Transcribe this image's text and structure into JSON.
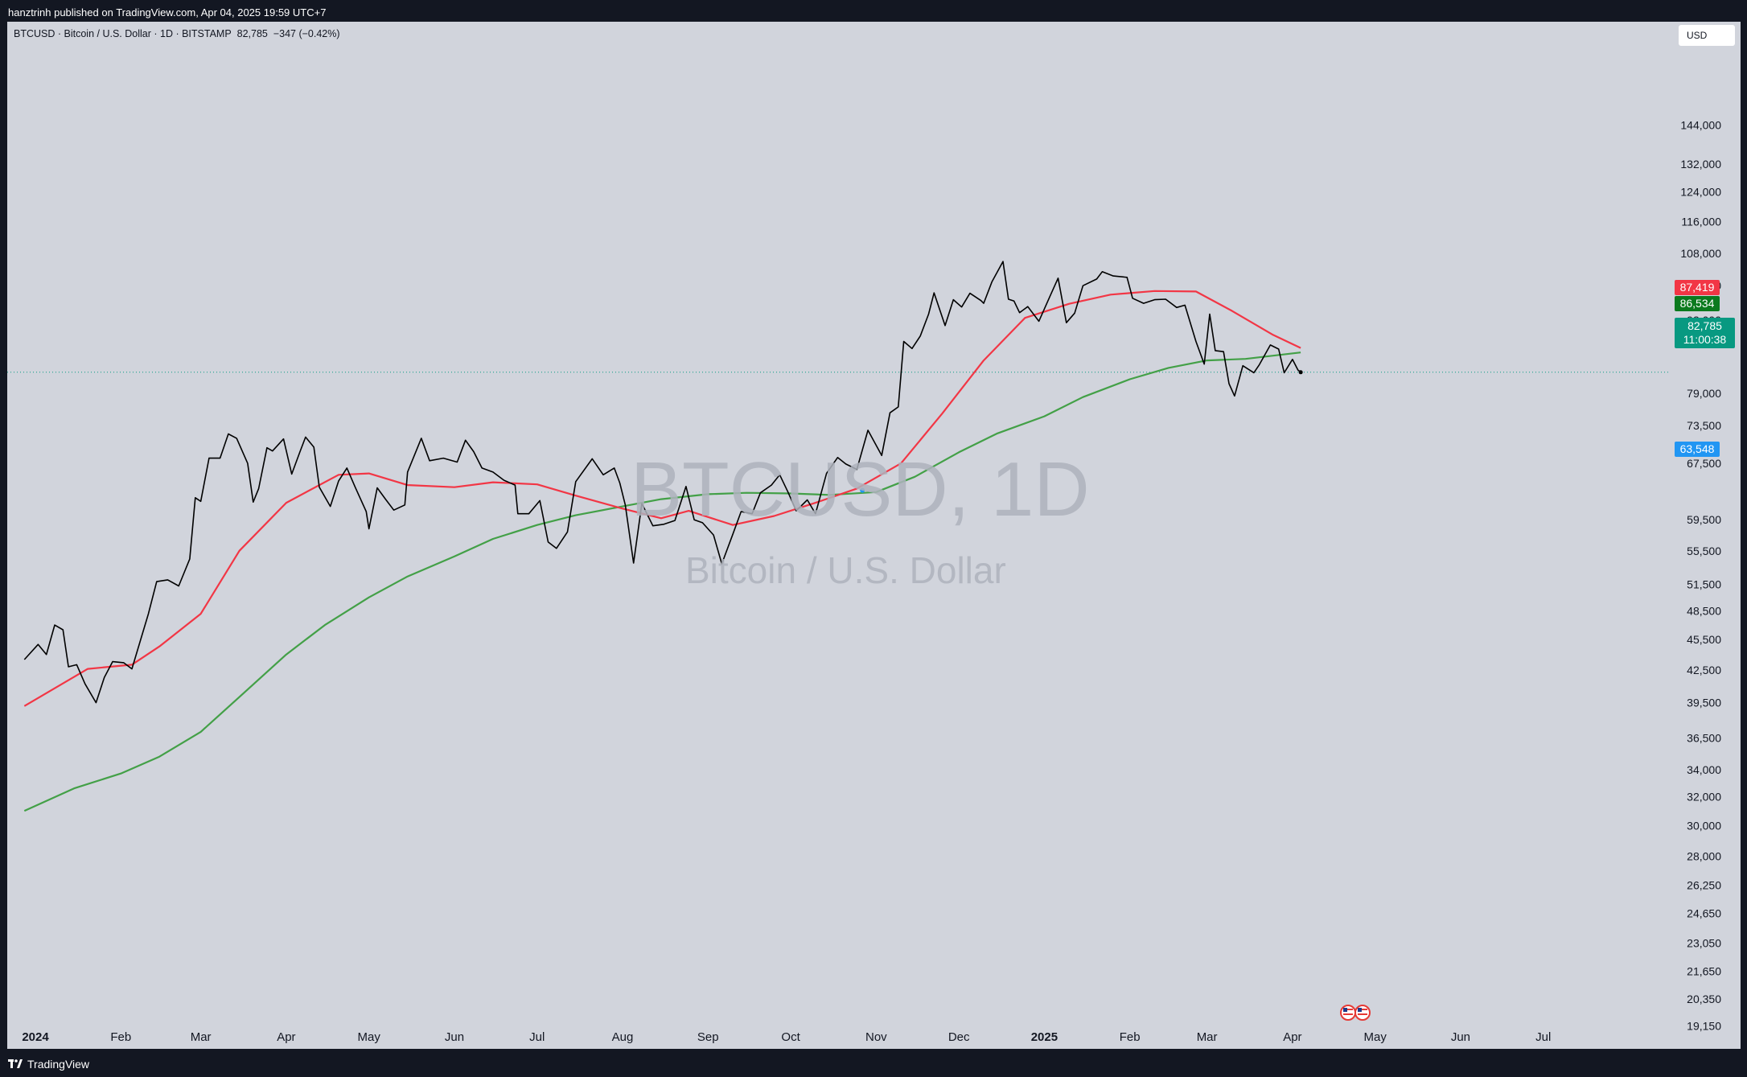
{
  "header": {
    "publish_text": "hanztrinh published on TradingView.com, Apr 04, 2025 19:59 UTC+7"
  },
  "symbol_line": {
    "symbol": "BTCUSD",
    "description": "Bitcoin / U.S. Dollar",
    "interval": "1D",
    "exchange": "BITSTAMP",
    "separator": " · ",
    "last": "82,785",
    "change": "−347 (−0.42%)"
  },
  "watermark": {
    "symbol": "BTCUSD, 1D",
    "description": "Bitcoin / U.S. Dollar"
  },
  "price_scale": {
    "currency": "USD",
    "log_scale": true,
    "ticks": [
      "144,000",
      "132,000",
      "124,000",
      "116,000",
      "108,000",
      "100,500",
      "93,000",
      "79,000",
      "73,500",
      "67,500",
      "59,500",
      "55,500",
      "51,500",
      "48,500",
      "45,500",
      "42,500",
      "39,500",
      "36,500",
      "34,000",
      "32,000",
      "30,000",
      "28,000",
      "26,250",
      "24,650",
      "23,050",
      "21,650",
      "20,350",
      "19,150"
    ]
  },
  "labels": {
    "ma_fast": "87,419",
    "ma_slow": "86,534",
    "last_price": "82,785",
    "countdown": "11:00:38",
    "marker": "63,548"
  },
  "colors": {
    "background": "#d1d4dc",
    "price_line": "#000000",
    "ma_fast": "#f23645",
    "ma_slow": "#43a047",
    "last_price_bg": "#089981",
    "ma_slow_label_bg": "#0b7a1e",
    "marker_label_bg": "#2196f3"
  },
  "footer": {
    "brand": "TradingView"
  },
  "chart_data": {
    "type": "line",
    "title": "BTCUSD · Bitcoin / U.S. Dollar · 1D · BITSTAMP",
    "y_scale": "log",
    "ylim": [
      19150,
      152000
    ],
    "xlim": [
      "2024-01-01",
      "2025-08-01"
    ],
    "x_tick_labels": [
      "2024",
      "Feb",
      "Mar",
      "Apr",
      "May",
      "Jun",
      "Jul",
      "Aug",
      "Sep",
      "Oct",
      "Nov",
      "Dec",
      "2025",
      "Feb",
      "Mar",
      "Apr",
      "May",
      "Jun",
      "Jul"
    ],
    "x_ticks": [
      "2024-01-01",
      "2024-02-01",
      "2024-03-01",
      "2024-04-01",
      "2024-05-01",
      "2024-06-01",
      "2024-07-01",
      "2024-08-01",
      "2024-09-01",
      "2024-10-01",
      "2024-11-01",
      "2024-12-01",
      "2025-01-01",
      "2025-02-01",
      "2025-03-01",
      "2025-04-01",
      "2025-05-01",
      "2025-06-01",
      "2025-07-01"
    ],
    "grid": false,
    "legend": "none",
    "series": [
      {
        "kind": "price",
        "values": [
          [
            "2023-12-28",
            43500
          ],
          [
            "2024-01-02",
            45000
          ],
          [
            "2024-01-05",
            44000
          ],
          [
            "2024-01-08",
            47000
          ],
          [
            "2024-01-11",
            46500
          ],
          [
            "2024-01-13",
            42800
          ],
          [
            "2024-01-16",
            43000
          ],
          [
            "2024-01-19",
            41200
          ],
          [
            "2024-01-23",
            39500
          ],
          [
            "2024-01-26",
            41800
          ],
          [
            "2024-01-29",
            43300
          ],
          [
            "2024-02-02",
            43200
          ],
          [
            "2024-02-05",
            42600
          ],
          [
            "2024-02-08",
            45300
          ],
          [
            "2024-02-11",
            48200
          ],
          [
            "2024-02-14",
            51800
          ],
          [
            "2024-02-18",
            52000
          ],
          [
            "2024-02-22",
            51300
          ],
          [
            "2024-02-26",
            54500
          ],
          [
            "2024-02-28",
            62500
          ],
          [
            "2024-03-01",
            62000
          ],
          [
            "2024-03-04",
            68300
          ],
          [
            "2024-03-08",
            68300
          ],
          [
            "2024-03-11",
            72100
          ],
          [
            "2024-03-14",
            71400
          ],
          [
            "2024-03-18",
            67500
          ],
          [
            "2024-03-20",
            61900
          ],
          [
            "2024-03-22",
            63800
          ],
          [
            "2024-03-25",
            69900
          ],
          [
            "2024-03-27",
            69400
          ],
          [
            "2024-03-31",
            71300
          ],
          [
            "2024-04-03",
            65900
          ],
          [
            "2024-04-06",
            69300
          ],
          [
            "2024-04-08",
            71600
          ],
          [
            "2024-04-11",
            70000
          ],
          [
            "2024-04-13",
            64000
          ],
          [
            "2024-04-17",
            61300
          ],
          [
            "2024-04-20",
            64900
          ],
          [
            "2024-04-23",
            66800
          ],
          [
            "2024-04-26",
            64000
          ],
          [
            "2024-04-30",
            60600
          ],
          [
            "2024-05-01",
            58300
          ],
          [
            "2024-05-04",
            63900
          ],
          [
            "2024-05-07",
            62300
          ],
          [
            "2024-05-10",
            60800
          ],
          [
            "2024-05-14",
            61500
          ],
          [
            "2024-05-15",
            66200
          ],
          [
            "2024-05-20",
            71400
          ],
          [
            "2024-05-23",
            67900
          ],
          [
            "2024-05-28",
            68300
          ],
          [
            "2024-06-02",
            67700
          ],
          [
            "2024-06-05",
            71100
          ],
          [
            "2024-06-08",
            69300
          ],
          [
            "2024-06-11",
            66800
          ],
          [
            "2024-06-15",
            66200
          ],
          [
            "2024-06-19",
            65000
          ],
          [
            "2024-06-23",
            64300
          ],
          [
            "2024-06-24",
            60300
          ],
          [
            "2024-06-28",
            60300
          ],
          [
            "2024-07-02",
            62100
          ],
          [
            "2024-07-05",
            56600
          ],
          [
            "2024-07-08",
            55800
          ],
          [
            "2024-07-12",
            57900
          ],
          [
            "2024-07-15",
            64800
          ],
          [
            "2024-07-21",
            68200
          ],
          [
            "2024-07-25",
            65800
          ],
          [
            "2024-07-29",
            66800
          ],
          [
            "2024-07-31",
            64600
          ],
          [
            "2024-08-02",
            61500
          ],
          [
            "2024-08-05",
            54000
          ],
          [
            "2024-08-08",
            61700
          ],
          [
            "2024-08-12",
            58700
          ],
          [
            "2024-08-16",
            58900
          ],
          [
            "2024-08-20",
            59400
          ],
          [
            "2024-08-24",
            64100
          ],
          [
            "2024-08-27",
            59500
          ],
          [
            "2024-08-30",
            59100
          ],
          [
            "2024-09-03",
            57500
          ],
          [
            "2024-09-06",
            53900
          ],
          [
            "2024-09-10",
            57600
          ],
          [
            "2024-09-13",
            60600
          ],
          [
            "2024-09-17",
            60300
          ],
          [
            "2024-09-20",
            63200
          ],
          [
            "2024-09-24",
            64300
          ],
          [
            "2024-09-27",
            65800
          ],
          [
            "2024-09-30",
            63300
          ],
          [
            "2024-10-03",
            60700
          ],
          [
            "2024-10-07",
            62200
          ],
          [
            "2024-10-10",
            60300
          ],
          [
            "2024-10-14",
            66000
          ],
          [
            "2024-10-18",
            68400
          ],
          [
            "2024-10-21",
            67400
          ],
          [
            "2024-10-25",
            66600
          ],
          [
            "2024-10-29",
            72700
          ],
          [
            "2024-11-03",
            68700
          ],
          [
            "2024-11-06",
            75600
          ],
          [
            "2024-11-09",
            76600
          ],
          [
            "2024-11-11",
            88700
          ],
          [
            "2024-11-14",
            87300
          ],
          [
            "2024-11-17",
            89800
          ],
          [
            "2024-11-20",
            94300
          ],
          [
            "2024-11-22",
            98900
          ],
          [
            "2024-11-26",
            91900
          ],
          [
            "2024-11-29",
            97400
          ],
          [
            "2024-12-02",
            95800
          ],
          [
            "2024-12-05",
            98800
          ],
          [
            "2024-12-09",
            97200
          ],
          [
            "2024-12-10",
            96600
          ],
          [
            "2024-12-13",
            101400
          ],
          [
            "2024-12-17",
            106100
          ],
          [
            "2024-12-19",
            97500
          ],
          [
            "2024-12-21",
            97100
          ],
          [
            "2024-12-23",
            94600
          ],
          [
            "2024-12-26",
            95900
          ],
          [
            "2024-12-30",
            92800
          ],
          [
            "2025-01-03",
            98100
          ],
          [
            "2025-01-06",
            102200
          ],
          [
            "2025-01-09",
            92500
          ],
          [
            "2025-01-12",
            94500
          ],
          [
            "2025-01-15",
            100500
          ],
          [
            "2025-01-20",
            102000
          ],
          [
            "2025-01-22",
            103700
          ],
          [
            "2025-01-26",
            102700
          ],
          [
            "2025-01-31",
            102400
          ],
          [
            "2025-02-02",
            97700
          ],
          [
            "2025-02-06",
            96600
          ],
          [
            "2025-02-10",
            97400
          ],
          [
            "2025-02-14",
            97500
          ],
          [
            "2025-02-18",
            95700
          ],
          [
            "2025-02-21",
            96200
          ],
          [
            "2025-02-25",
            88700
          ],
          [
            "2025-02-28",
            84300
          ],
          [
            "2025-03-02",
            94300
          ],
          [
            "2025-03-04",
            86900
          ],
          [
            "2025-03-07",
            86700
          ],
          [
            "2025-03-09",
            80700
          ],
          [
            "2025-03-11",
            78500
          ],
          [
            "2025-03-14",
            84000
          ],
          [
            "2025-03-18",
            82700
          ],
          [
            "2025-03-20",
            84200
          ],
          [
            "2025-03-24",
            88000
          ],
          [
            "2025-03-27",
            87200
          ],
          [
            "2025-03-29",
            82700
          ],
          [
            "2025-04-01",
            85200
          ],
          [
            "2025-04-03",
            83200
          ],
          [
            "2025-04-04",
            82785
          ]
        ]
      },
      {
        "kind": "ma_fast",
        "values": [
          [
            "2023-12-28",
            39200
          ],
          [
            "2024-01-20",
            42600
          ],
          [
            "2024-02-05",
            43000
          ],
          [
            "2024-02-15",
            44800
          ],
          [
            "2024-03-01",
            48200
          ],
          [
            "2024-03-15",
            55500
          ],
          [
            "2024-04-01",
            61800
          ],
          [
            "2024-04-20",
            65800
          ],
          [
            "2024-05-01",
            66000
          ],
          [
            "2024-05-15",
            64300
          ],
          [
            "2024-06-01",
            64000
          ],
          [
            "2024-06-15",
            64700
          ],
          [
            "2024-07-01",
            64400
          ],
          [
            "2024-07-15",
            62800
          ],
          [
            "2024-08-01",
            61000
          ],
          [
            "2024-08-15",
            59700
          ],
          [
            "2024-08-25",
            60700
          ],
          [
            "2024-09-10",
            58800
          ],
          [
            "2024-09-25",
            60000
          ],
          [
            "2024-10-10",
            61800
          ],
          [
            "2024-10-25",
            63800
          ],
          [
            "2024-11-10",
            67500
          ],
          [
            "2024-11-25",
            75500
          ],
          [
            "2024-12-10",
            85000
          ],
          [
            "2024-12-25",
            93500
          ],
          [
            "2025-01-10",
            96500
          ],
          [
            "2025-01-25",
            98500
          ],
          [
            "2025-02-10",
            99300
          ],
          [
            "2025-02-25",
            99200
          ],
          [
            "2025-03-10",
            95000
          ],
          [
            "2025-03-25",
            90000
          ],
          [
            "2025-04-04",
            87419
          ]
        ]
      },
      {
        "kind": "ma_slow",
        "values": [
          [
            "2023-12-28",
            31000
          ],
          [
            "2024-01-15",
            32600
          ],
          [
            "2024-02-01",
            33700
          ],
          [
            "2024-02-15",
            35000
          ],
          [
            "2024-03-01",
            37000
          ],
          [
            "2024-03-15",
            40000
          ],
          [
            "2024-04-01",
            44000
          ],
          [
            "2024-04-15",
            47000
          ],
          [
            "2024-05-01",
            50000
          ],
          [
            "2024-05-15",
            52400
          ],
          [
            "2024-06-01",
            54800
          ],
          [
            "2024-06-15",
            57000
          ],
          [
            "2024-07-01",
            58800
          ],
          [
            "2024-07-15",
            60100
          ],
          [
            "2024-08-01",
            61300
          ],
          [
            "2024-08-15",
            62300
          ],
          [
            "2024-09-01",
            63000
          ],
          [
            "2024-09-15",
            63200
          ],
          [
            "2024-10-01",
            63100
          ],
          [
            "2024-10-15",
            62900
          ],
          [
            "2024-11-01",
            63300
          ],
          [
            "2024-11-15",
            65500
          ],
          [
            "2024-12-01",
            69200
          ],
          [
            "2024-12-15",
            72200
          ],
          [
            "2025-01-01",
            75000
          ],
          [
            "2025-01-15",
            78300
          ],
          [
            "2025-02-01",
            81500
          ],
          [
            "2025-02-15",
            83600
          ],
          [
            "2025-03-01",
            85000
          ],
          [
            "2025-03-15",
            85300
          ],
          [
            "2025-04-04",
            86534
          ]
        ]
      }
    ]
  }
}
